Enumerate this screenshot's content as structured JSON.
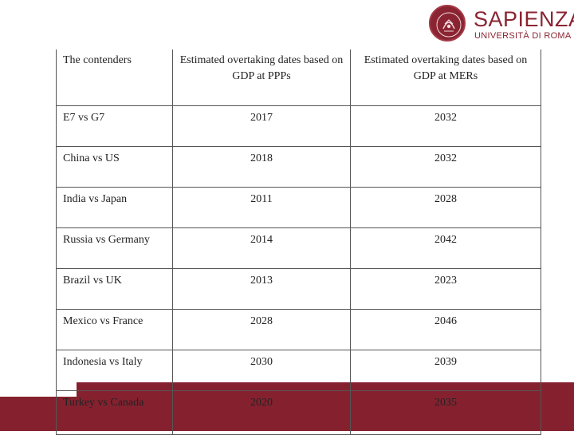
{
  "logo": {
    "brand": "SAPIENZA",
    "subtitle": "UNIVERSITÀ DI ROMA",
    "accent_color": "#85212f"
  },
  "table": {
    "headers": [
      "The contenders",
      "Estimated overtaking dates based on GDP at PPPs",
      "Estimated overtaking dates based on GDP at MERs"
    ],
    "rows": [
      {
        "contenders": "E7 vs G7",
        "ppp": "2017",
        "mer": "2032"
      },
      {
        "contenders": "China vs US",
        "ppp": "2018",
        "mer": "2032"
      },
      {
        "contenders": "India vs Japan",
        "ppp": "2011",
        "mer": "2028"
      },
      {
        "contenders": "Russia vs Germany",
        "ppp": "2014",
        "mer": "2042"
      },
      {
        "contenders": "Brazil vs UK",
        "ppp": "2013",
        "mer": "2023"
      },
      {
        "contenders": "Mexico vs France",
        "ppp": "2028",
        "mer": "2046"
      },
      {
        "contenders": "Indonesia vs Italy",
        "ppp": "2030",
        "mer": "2039"
      },
      {
        "contenders": "Turkey vs Canada",
        "ppp": "2020",
        "mer": "2035"
      }
    ]
  }
}
